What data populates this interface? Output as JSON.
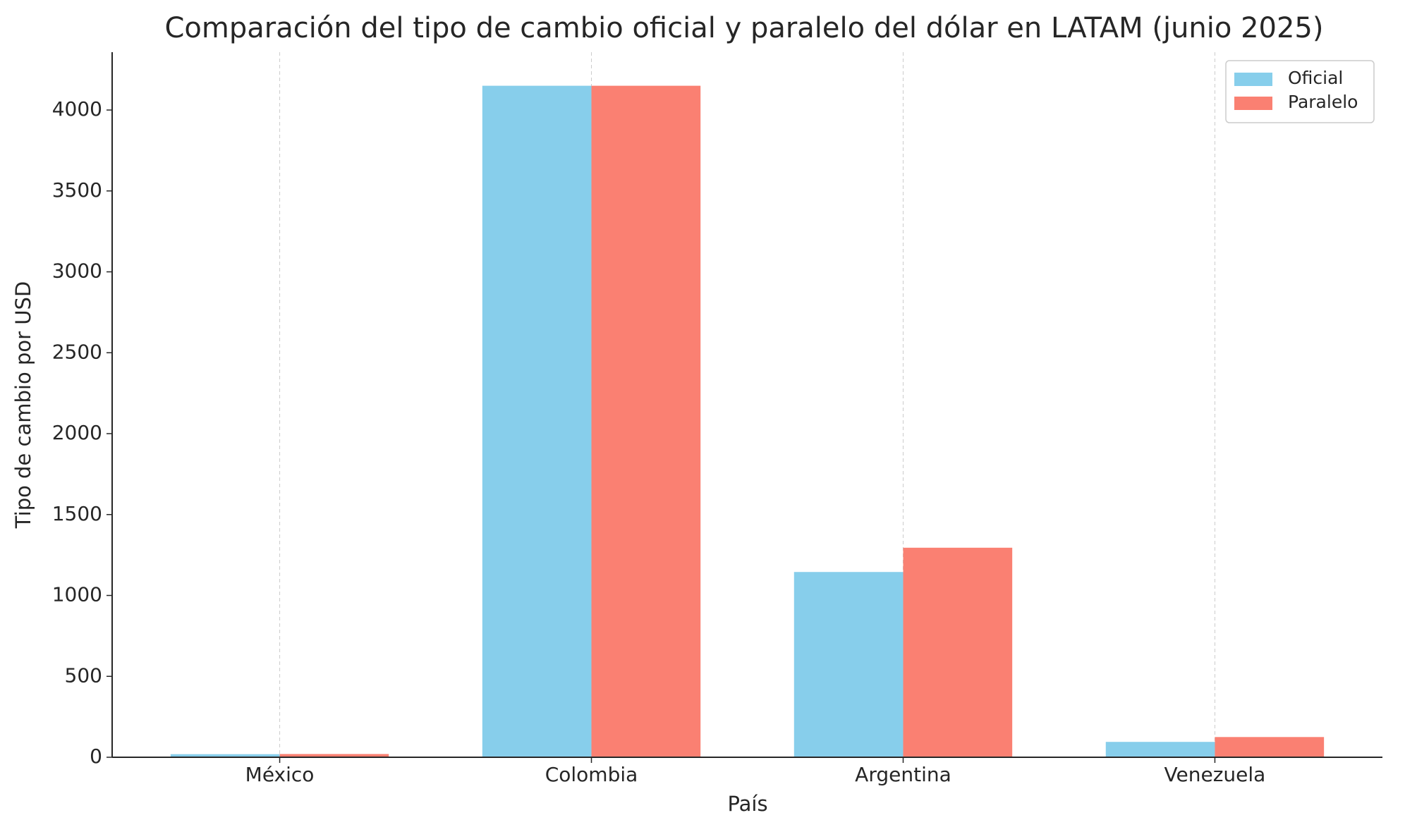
{
  "chart_data": {
    "type": "bar",
    "title": "Comparación del tipo de cambio oficial y paralelo del dólar en LATAM (junio 2025)",
    "x_label": "País",
    "y_label": "Tipo de cambio por USD",
    "categories": [
      "México",
      "Colombia",
      "Argentina",
      "Venezuela"
    ],
    "series": [
      {
        "name": "Oficial",
        "color": "#87ceeb",
        "values": [
          19,
          4150,
          1145,
          95
        ]
      },
      {
        "name": "Paralelo",
        "color": "#fa8072",
        "values": [
          20,
          4150,
          1295,
          125
        ]
      }
    ],
    "ylim": [
      0,
      4357.5
    ],
    "yticks": [
      0,
      500,
      1000,
      1500,
      2000,
      2500,
      3000,
      3500,
      4000
    ],
    "grid": "x",
    "legend": "upper right"
  }
}
